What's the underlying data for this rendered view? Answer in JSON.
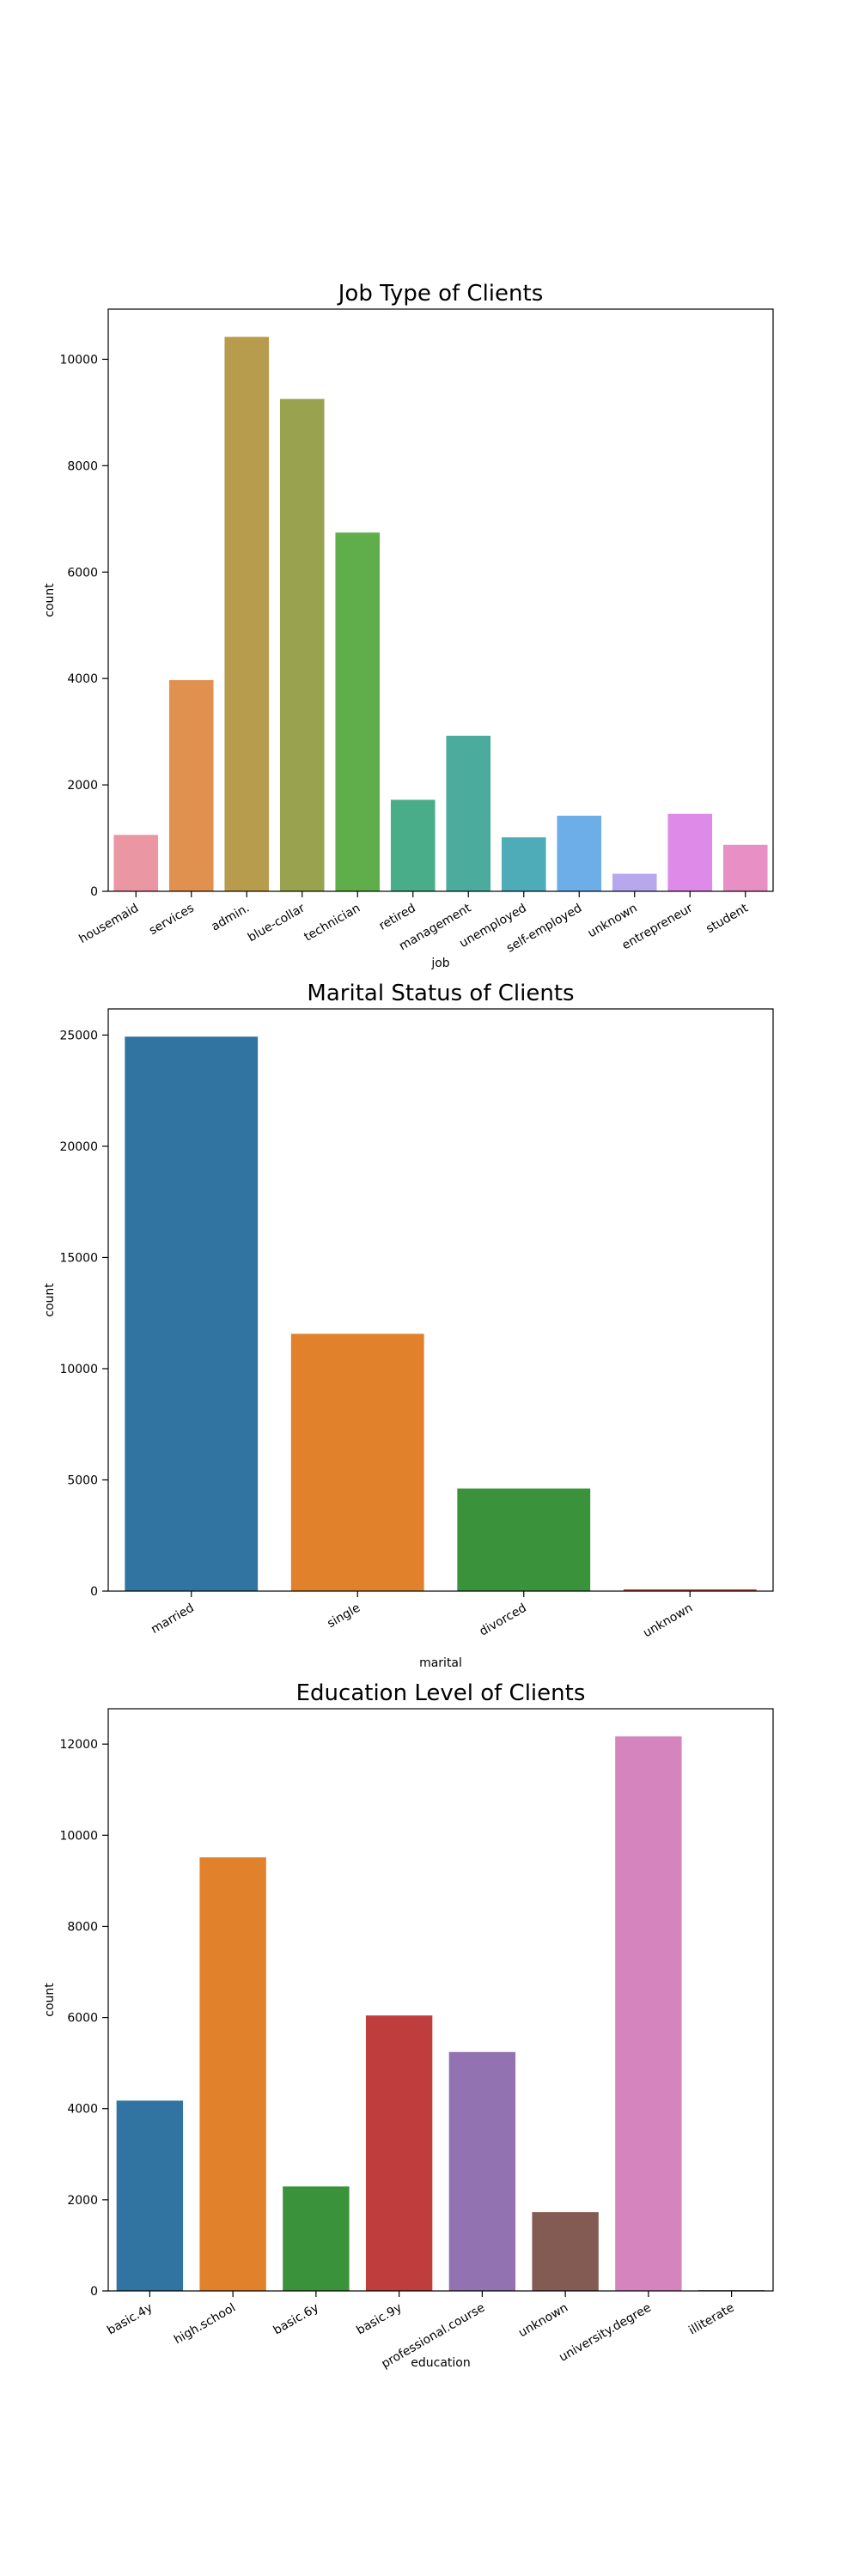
{
  "chart_data": [
    {
      "type": "bar",
      "title": "Job Type of Clients",
      "xlabel": "job",
      "ylabel": "count",
      "categories": [
        "housemaid",
        "services",
        "admin.",
        "blue-collar",
        "technician",
        "retired",
        "management",
        "unemployed",
        "self-employed",
        "unknown",
        "entrepreneur",
        "student"
      ],
      "values": [
        1060,
        3969,
        10422,
        9254,
        6743,
        1720,
        2924,
        1014,
        1421,
        330,
        1456,
        875
      ],
      "colors": [
        "#ea96a3",
        "#e1914f",
        "#b89c4d",
        "#99a24f",
        "#5fae4b",
        "#4aad89",
        "#4bab9c",
        "#4eabb8",
        "#6eaee8",
        "#b7a8ee",
        "#dd8ae8",
        "#e890c6"
      ],
      "ylim": [
        0,
        10943
      ],
      "yticks": [
        0,
        2000,
        4000,
        6000,
        8000,
        10000
      ],
      "grid": false,
      "legend": "none"
    },
    {
      "type": "bar",
      "title": "Marital Status of Clients",
      "xlabel": "marital",
      "ylabel": "count",
      "categories": [
        "married",
        "single",
        "divorced",
        "unknown"
      ],
      "values": [
        24928,
        11568,
        4612,
        80
      ],
      "colors": [
        "#3274a1",
        "#e1812c",
        "#3a923a",
        "#c03d3e"
      ],
      "ylim": [
        0,
        26174
      ],
      "yticks": [
        0,
        5000,
        10000,
        15000,
        20000,
        25000
      ],
      "grid": false,
      "legend": "none"
    },
    {
      "type": "bar",
      "title": "Education Level of Clients",
      "xlabel": "education",
      "ylabel": "count",
      "categories": [
        "basic.4y",
        "high.school",
        "basic.6y",
        "basic.9y",
        "professional.course",
        "unknown",
        "university.degree",
        "illiterate"
      ],
      "values": [
        4176,
        9515,
        2292,
        6045,
        5243,
        1731,
        12168,
        18
      ],
      "colors": [
        "#3274a1",
        "#e1812c",
        "#3a923a",
        "#c03d3e",
        "#9372b2",
        "#845b53",
        "#d684bd",
        "#7f7f7f"
      ],
      "ylim": [
        0,
        12776
      ],
      "yticks": [
        0,
        2000,
        4000,
        6000,
        8000,
        10000,
        12000
      ],
      "grid": false,
      "legend": "none"
    }
  ]
}
